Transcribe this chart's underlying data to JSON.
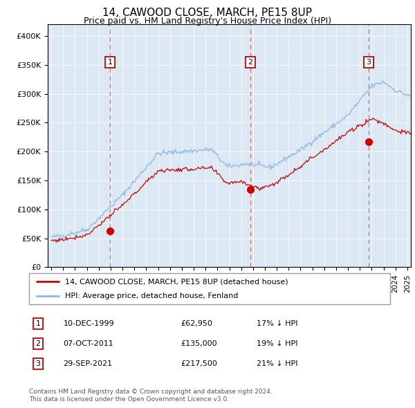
{
  "title": "14, CAWOOD CLOSE, MARCH, PE15 8UP",
  "subtitle": "Price paid vs. HM Land Registry's House Price Index (HPI)",
  "hpi_label": "HPI: Average price, detached house, Fenland",
  "property_label": "14, CAWOOD CLOSE, MARCH, PE15 8UP (detached house)",
  "transactions": [
    {
      "num": 1,
      "date": "10-DEC-1999",
      "price": "£62,950",
      "pct": "17% ↓ HPI"
    },
    {
      "num": 2,
      "date": "07-OCT-2011",
      "price": "£135,000",
      "pct": "19% ↓ HPI"
    },
    {
      "num": 3,
      "date": "29-SEP-2021",
      "price": "£217,500",
      "pct": "21% ↓ HPI"
    }
  ],
  "transaction_dates_decimal": [
    1999.94,
    2011.77,
    2021.75
  ],
  "transaction_prices": [
    62950,
    135000,
    217500
  ],
  "ylim": [
    0,
    420000
  ],
  "yticks": [
    0,
    50000,
    100000,
    150000,
    200000,
    250000,
    300000,
    350000,
    400000
  ],
  "background_color": "#dce9f5",
  "hpi_color": "#85b8e8",
  "property_color": "#cc0000",
  "vline_color": "#e05050",
  "footer_line1": "Contains HM Land Registry data © Crown copyright and database right 2024.",
  "footer_line2": "This data is licensed under the Open Government Licence v3.0.",
  "start_year": 1995.0,
  "end_year": 2025.3,
  "xtick_start": 1995,
  "xtick_end": 2025
}
